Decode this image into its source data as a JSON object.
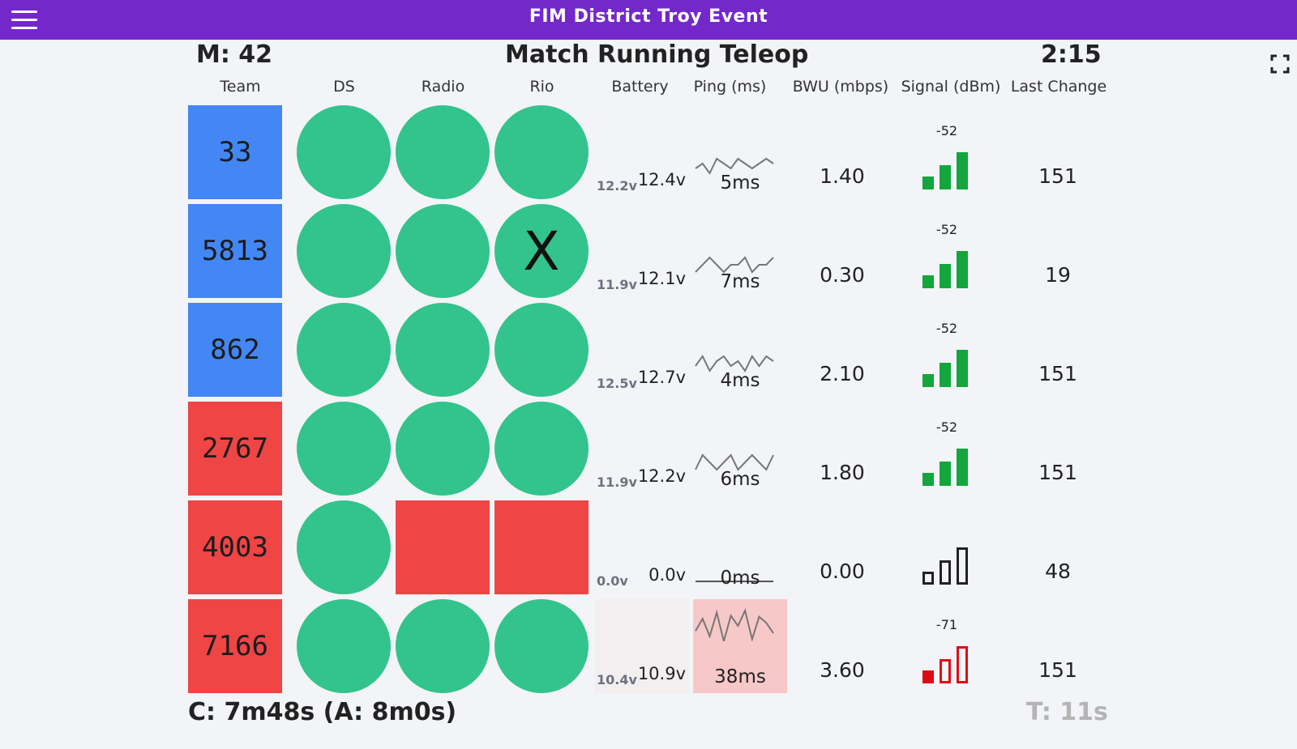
{
  "app": {
    "title": "FIM District Troy Event"
  },
  "match": {
    "number": "M: 42",
    "status": "Match Running Teleop",
    "timer": "2:15"
  },
  "columns": {
    "team": "Team",
    "ds": "DS",
    "radio": "Radio",
    "rio": "Rio",
    "battery": "Battery",
    "ping": "Ping (ms)",
    "bwu": "BWU (mbps)",
    "signal": "Signal (dBm)",
    "last_change": "Last Change"
  },
  "colors": {
    "blue": "#4387f5",
    "red": "#ef4545",
    "ok": "#32c48c",
    "bar_green": "#12a63c",
    "bar_red": "#e00b14",
    "bar_dark": "#222222",
    "ping_bad_bg": "#f7c8c8",
    "battery_warn_bg": "#f3eeef"
  },
  "teams": [
    {
      "number": "33",
      "alliance": "blue",
      "ds": "ok",
      "radio": "ok",
      "rio": "ok",
      "rio_mark": "",
      "battery_min": "12.2v",
      "battery": "12.4v",
      "ping": "5ms",
      "ping_bad": false,
      "ping_trend": [
        4,
        5,
        3,
        6,
        5,
        4,
        6,
        5,
        4,
        5,
        6,
        5
      ],
      "bwu": "1.40",
      "signal": "-52",
      "signal_bars": 3,
      "signal_color": "green",
      "last_change": "151",
      "battery_warn": false
    },
    {
      "number": "5813",
      "alliance": "blue",
      "ds": "ok",
      "radio": "ok",
      "rio": "ok",
      "rio_mark": "X",
      "battery_min": "11.9v",
      "battery": "12.1v",
      "ping": "7ms",
      "ping_bad": false,
      "ping_trend": [
        6,
        7,
        8,
        7,
        6,
        7,
        7,
        8,
        6,
        7,
        7,
        8
      ],
      "bwu": "0.30",
      "signal": "-52",
      "signal_bars": 3,
      "signal_color": "green",
      "last_change": "19",
      "battery_warn": false
    },
    {
      "number": "862",
      "alliance": "blue",
      "ds": "ok",
      "radio": "ok",
      "rio": "ok",
      "rio_mark": "",
      "battery_min": "12.5v",
      "battery": "12.7v",
      "ping": "4ms",
      "ping_bad": false,
      "ping_trend": [
        3,
        5,
        2,
        4,
        5,
        3,
        4,
        2,
        5,
        3,
        5,
        4
      ],
      "bwu": "2.10",
      "signal": "-52",
      "signal_bars": 3,
      "signal_color": "green",
      "last_change": "151",
      "battery_warn": false
    },
    {
      "number": "2767",
      "alliance": "red",
      "ds": "ok",
      "radio": "ok",
      "rio": "ok",
      "rio_mark": "",
      "battery_min": "11.9v",
      "battery": "12.2v",
      "ping": "6ms",
      "ping_bad": false,
      "ping_trend": [
        5,
        7,
        6,
        5,
        6,
        7,
        5,
        6,
        7,
        6,
        5,
        7
      ],
      "bwu": "1.80",
      "signal": "-52",
      "signal_bars": 3,
      "signal_color": "green",
      "last_change": "151",
      "battery_warn": false
    },
    {
      "number": "4003",
      "alliance": "red",
      "ds": "ok",
      "radio": "bad",
      "rio": "bad",
      "rio_mark": "",
      "battery_min": "0.0v",
      "battery": "0.0v",
      "ping": "0ms",
      "ping_bad": false,
      "ping_trend": [
        0,
        0,
        0,
        0,
        0,
        0,
        0,
        0,
        0,
        0,
        0,
        0
      ],
      "bwu": "0.00",
      "signal": "",
      "signal_bars": 0,
      "signal_color": "dark",
      "last_change": "48",
      "battery_warn": false
    },
    {
      "number": "7166",
      "alliance": "red",
      "ds": "ok",
      "radio": "ok",
      "rio": "ok",
      "rio_mark": "",
      "battery_min": "10.4v",
      "battery": "10.9v",
      "ping": "38ms",
      "ping_bad": true,
      "ping_trend": [
        30,
        42,
        25,
        48,
        20,
        45,
        35,
        50,
        22,
        44,
        38,
        28
      ],
      "bwu": "3.60",
      "signal": "-71",
      "signal_bars": 1,
      "signal_color": "red",
      "last_change": "151",
      "battery_warn": true
    }
  ],
  "footer": {
    "cycle": "C: 7m48s (A: 8m0s)",
    "timer": "T: 11s"
  }
}
